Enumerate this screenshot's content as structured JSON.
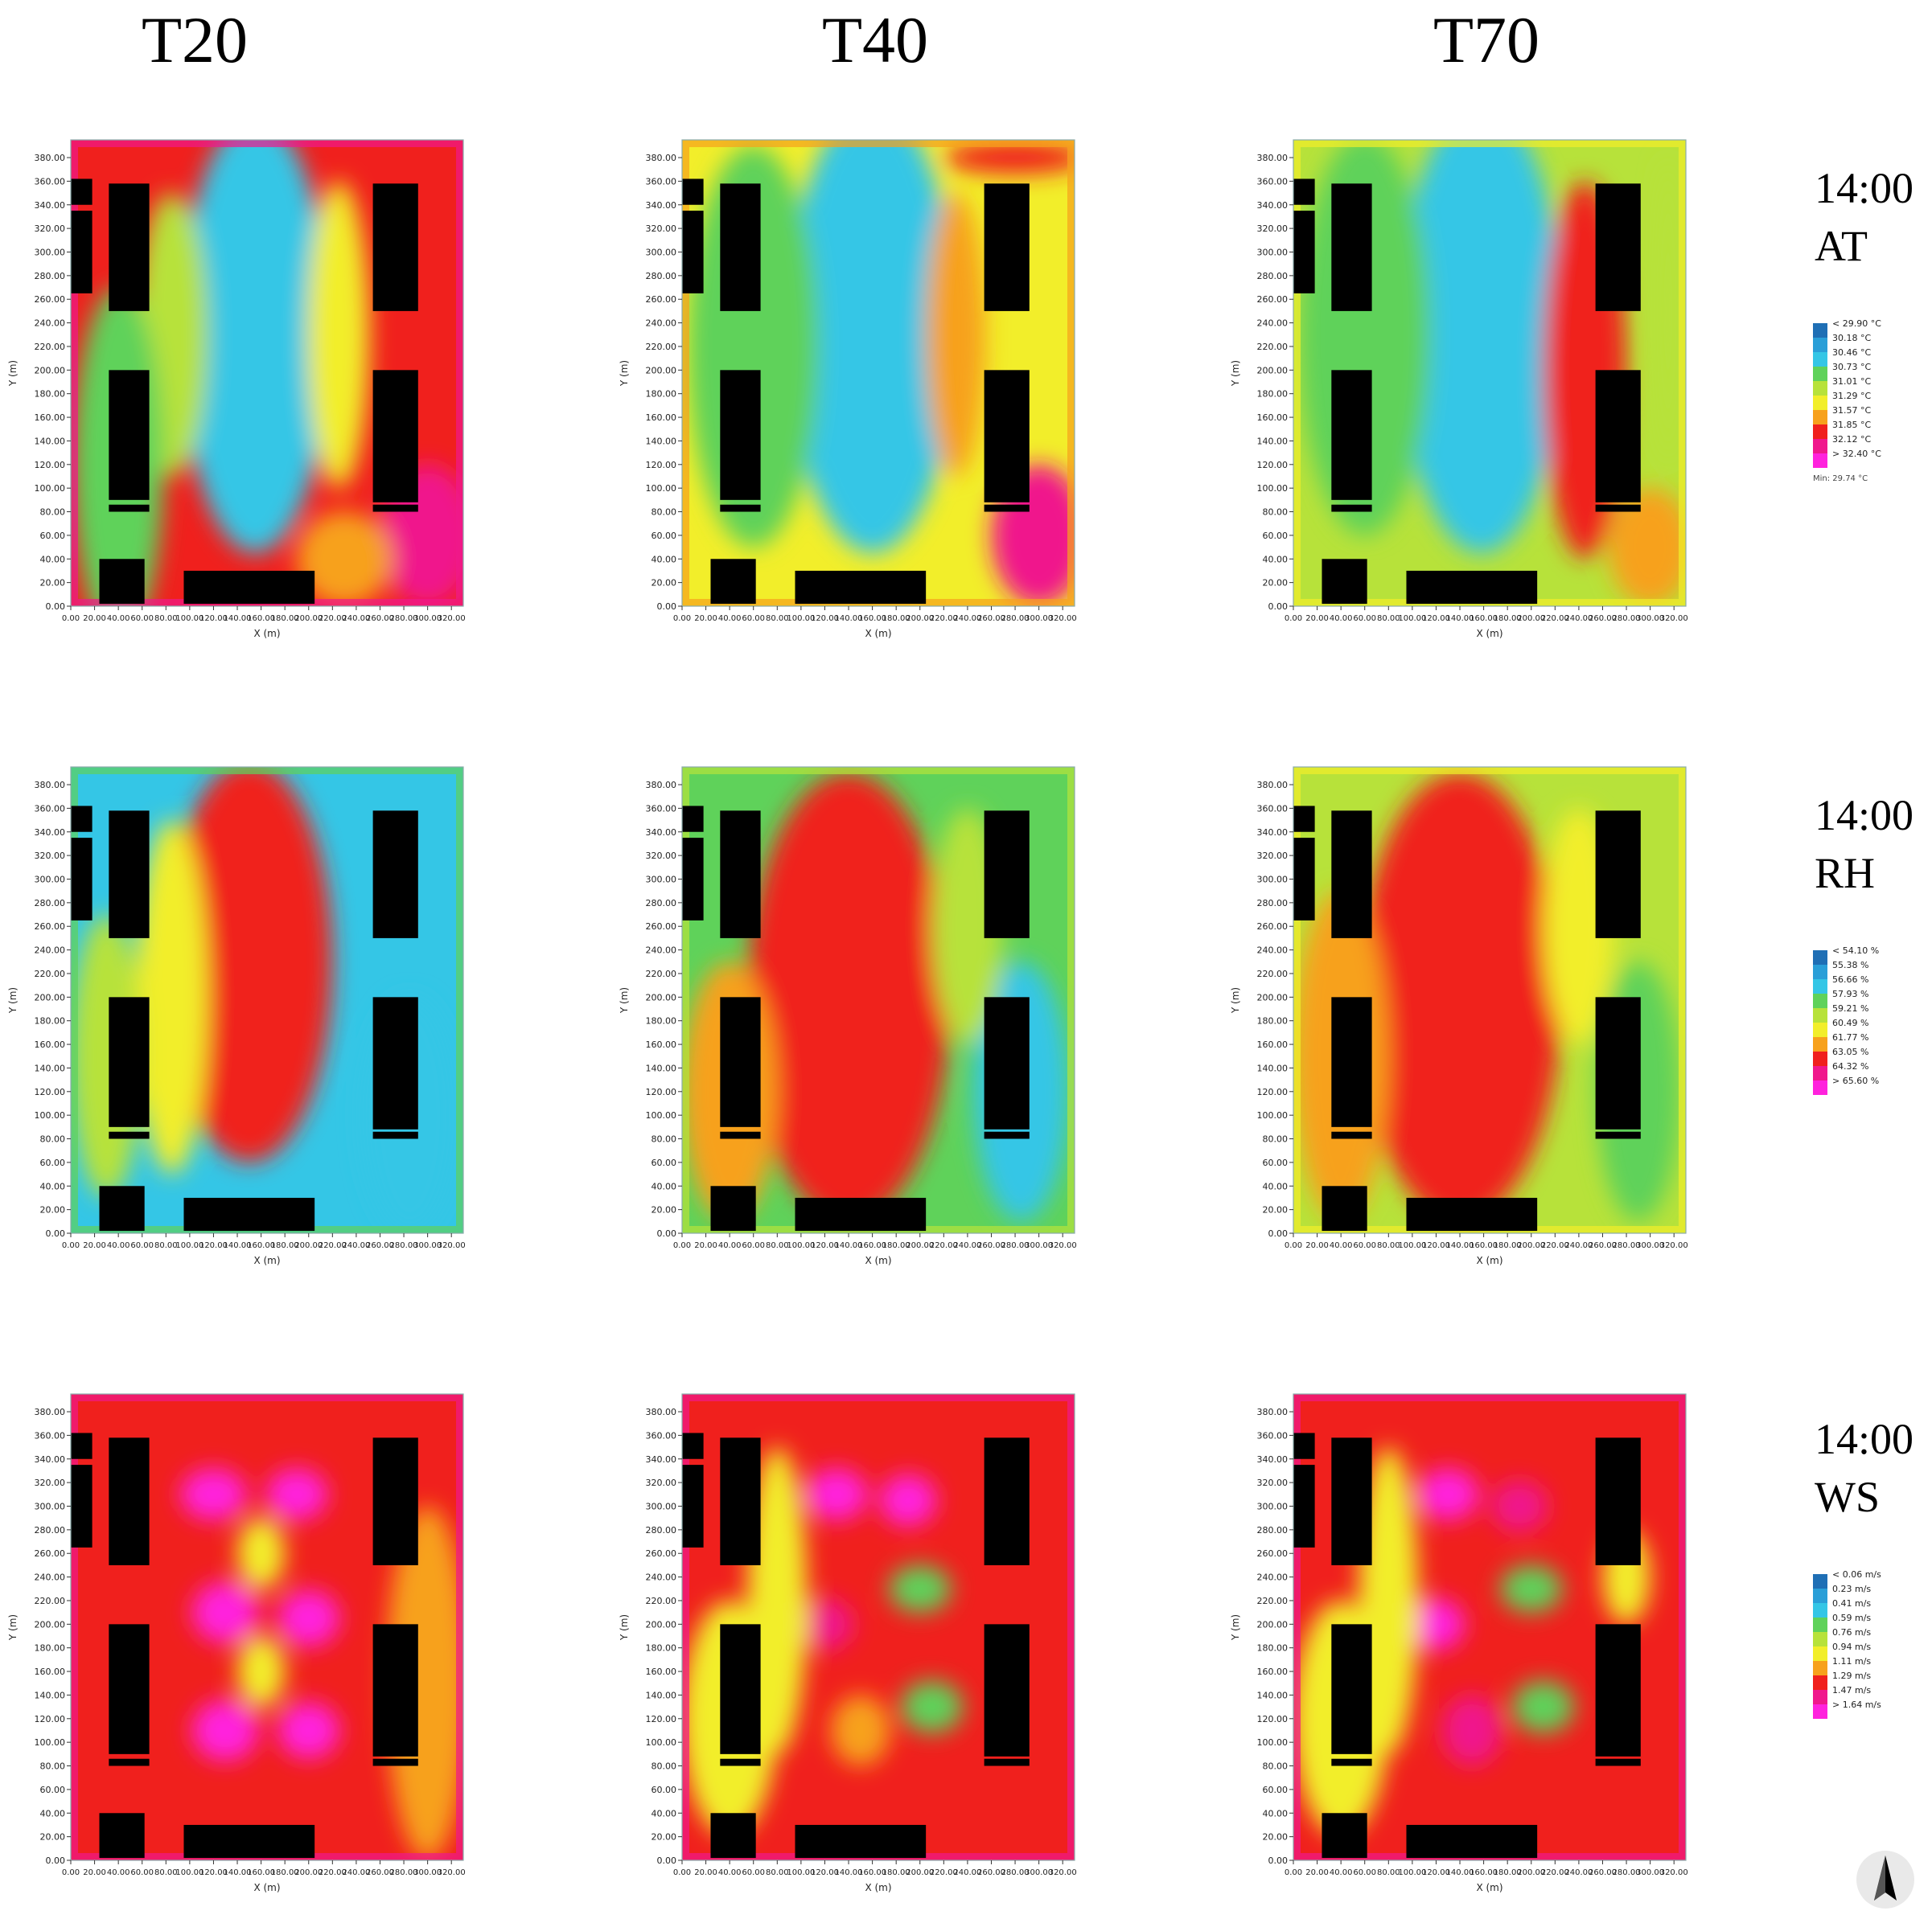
{
  "columns": [
    "T20",
    "T40",
    "T70"
  ],
  "rows": [
    {
      "time": "14:00",
      "variable": "AT",
      "legend": {
        "labels": [
          "< 29.90 °C",
          "30.18 °C",
          "30.46 °C",
          "30.73 °C",
          "31.01 °C",
          "31.29 °C",
          "31.57 °C",
          "31.85 °C",
          "32.12 °C",
          "> 32.40 °C"
        ],
        "footer": "Min: 29.74 °C"
      }
    },
    {
      "time": "14:00",
      "variable": "RH",
      "legend": {
        "labels": [
          "< 54.10 %",
          "55.38 %",
          "56.66 %",
          "57.93 %",
          "59.21 %",
          "60.49 %",
          "61.77 %",
          "63.05 %",
          "64.32 %",
          "> 65.60 %"
        ],
        "footer": ""
      }
    },
    {
      "time": "14:00",
      "variable": "WS",
      "legend": {
        "labels": [
          "< 0.06 m/s",
          "0.23 m/s",
          "0.41 m/s",
          "0.59 m/s",
          "0.76 m/s",
          "0.94 m/s",
          "1.11 m/s",
          "1.29 m/s",
          "1.47 m/s",
          "> 1.64 m/s"
        ],
        "footer": ""
      }
    }
  ],
  "colors": {
    "scale": [
      "#1f6fb5",
      "#2a9fd8",
      "#34c6e6",
      "#5fd25a",
      "#b7e23a",
      "#f2ee2a",
      "#f7a11c",
      "#f0201d",
      "#f0188c",
      "#ff22dd"
    ],
    "building": "#000000"
  },
  "chart_data": {
    "type": "heatmap",
    "panels": "3x3 grid (rows: AT, RH, WS; columns: T20, T40, T70)",
    "xlabel": "X (m)",
    "ylabel": "Y (m)",
    "x_ticks": [
      "0.00",
      "20.00",
      "40.00",
      "60.00",
      "80.00",
      "100.00",
      "120.00",
      "140.00",
      "160.00",
      "180.00",
      "200.00",
      "220.00",
      "240.00",
      "260.00",
      "280.00",
      "300.00",
      "320.00"
    ],
    "y_ticks": [
      "0.00",
      "20.00",
      "40.00",
      "60.00",
      "80.00",
      "100.00",
      "120.00",
      "140.00",
      "160.00",
      "180.00",
      "200.00",
      "220.00",
      "240.00",
      "260.00",
      "280.00",
      "300.00",
      "320.00",
      "340.00",
      "360.00",
      "380.00"
    ],
    "xlim": [
      0,
      330
    ],
    "ylim": [
      0,
      395
    ],
    "buildings": [
      {
        "x0": 0,
        "x1": 18,
        "y0": 340,
        "y1": 362
      },
      {
        "x0": 0,
        "x1": 18,
        "y0": 265,
        "y1": 335
      },
      {
        "x0": 32,
        "x1": 66,
        "y0": 250,
        "y1": 358
      },
      {
        "x0": 32,
        "x1": 66,
        "y0": 90,
        "y1": 200
      },
      {
        "x0": 32,
        "x1": 66,
        "y0": 80,
        "y1": 86
      },
      {
        "x0": 254,
        "x1": 292,
        "y0": 250,
        "y1": 358
      },
      {
        "x0": 254,
        "x1": 292,
        "y0": 88,
        "y1": 200
      },
      {
        "x0": 254,
        "x1": 292,
        "y0": 80,
        "y1": 86
      },
      {
        "x0": 24,
        "x1": 62,
        "y0": 2,
        "y1": 40
      },
      {
        "x0": 95,
        "x1": 205,
        "y0": 2,
        "y1": 30
      }
    ],
    "panel_values": [
      [
        {
          "background": 7,
          "zones": [
            {
              "cx": 155,
              "cy": 230,
              "rx": 42,
              "ry": 170,
              "v": 0
            },
            {
              "cx": 155,
              "cy": 230,
              "rx": 62,
              "ry": 185,
              "v": 2
            },
            {
              "cx": 85,
              "cy": 230,
              "rx": 30,
              "ry": 120,
              "v": 4
            },
            {
              "cx": 225,
              "cy": 230,
              "rx": 26,
              "ry": 130,
              "v": 5
            },
            {
              "cx": 40,
              "cy": 120,
              "rx": 38,
              "ry": 150,
              "v": 3
            },
            {
              "cx": 300,
              "cy": 60,
              "rx": 40,
              "ry": 60,
              "v": 8
            },
            {
              "cx": 230,
              "cy": 40,
              "rx": 40,
              "ry": 40,
              "v": 6
            }
          ]
        },
        {
          "background": 5,
          "zones": [
            {
              "cx": 160,
              "cy": 235,
              "rx": 45,
              "ry": 172,
              "v": 0
            },
            {
              "cx": 160,
              "cy": 235,
              "rx": 70,
              "ry": 190,
              "v": 2
            },
            {
              "cx": 60,
              "cy": 220,
              "rx": 55,
              "ry": 170,
              "v": 3
            },
            {
              "cx": 230,
              "cy": 230,
              "rx": 25,
              "ry": 120,
              "v": 6
            },
            {
              "cx": 300,
              "cy": 60,
              "rx": 40,
              "ry": 60,
              "v": 8
            },
            {
              "cx": 280,
              "cy": 380,
              "rx": 60,
              "ry": 14,
              "v": 7
            }
          ]
        },
        {
          "background": 4,
          "zones": [
            {
              "cx": 158,
              "cy": 235,
              "rx": 45,
              "ry": 172,
              "v": 0
            },
            {
              "cx": 158,
              "cy": 235,
              "rx": 68,
              "ry": 190,
              "v": 2
            },
            {
              "cx": 60,
              "cy": 230,
              "rx": 55,
              "ry": 170,
              "v": 3
            },
            {
              "cx": 245,
              "cy": 200,
              "rx": 35,
              "ry": 160,
              "v": 7
            },
            {
              "cx": 300,
              "cy": 50,
              "rx": 35,
              "ry": 50,
              "v": 6
            },
            {
              "cx": 315,
              "cy": 250,
              "rx": 10,
              "ry": 130,
              "v": 4
            }
          ]
        }
      ],
      [
        {
          "background": 2,
          "zones": [
            {
              "cx": 150,
              "cy": 230,
              "rx": 50,
              "ry": 150,
              "v": 9
            },
            {
              "cx": 150,
              "cy": 230,
              "rx": 70,
              "ry": 170,
              "v": 7
            },
            {
              "cx": 85,
              "cy": 200,
              "rx": 30,
              "ry": 150,
              "v": 5
            },
            {
              "cx": 30,
              "cy": 150,
              "rx": 30,
              "ry": 120,
              "v": 4
            },
            {
              "cx": 285,
              "cy": 100,
              "rx": 40,
              "ry": 100,
              "v": 2
            }
          ]
        },
        {
          "background": 3,
          "zones": [
            {
              "cx": 140,
              "cy": 200,
              "rx": 65,
              "ry": 170,
              "v": 9
            },
            {
              "cx": 140,
              "cy": 200,
              "rx": 85,
              "ry": 190,
              "v": 7
            },
            {
              "cx": 40,
              "cy": 120,
              "rx": 40,
              "ry": 110,
              "v": 6
            },
            {
              "cx": 285,
              "cy": 120,
              "rx": 40,
              "ry": 110,
              "v": 2
            },
            {
              "cx": 240,
              "cy": 260,
              "rx": 30,
              "ry": 100,
              "v": 4
            }
          ]
        },
        {
          "background": 4,
          "zones": [
            {
              "cx": 140,
              "cy": 200,
              "rx": 65,
              "ry": 170,
              "v": 9
            },
            {
              "cx": 140,
              "cy": 200,
              "rx": 85,
              "ry": 190,
              "v": 7
            },
            {
              "cx": 40,
              "cy": 150,
              "rx": 40,
              "ry": 140,
              "v": 6
            },
            {
              "cx": 290,
              "cy": 120,
              "rx": 35,
              "ry": 110,
              "v": 3
            },
            {
              "cx": 240,
              "cy": 260,
              "rx": 30,
              "ry": 100,
              "v": 5
            }
          ]
        }
      ],
      [
        {
          "background": 7,
          "zones": [
            {
              "cx": 120,
              "cy": 310,
              "rx": 28,
              "ry": 22,
              "v": 9
            },
            {
              "cx": 190,
              "cy": 310,
              "rx": 26,
              "ry": 22,
              "v": 9
            },
            {
              "cx": 130,
              "cy": 210,
              "rx": 28,
              "ry": 26,
              "v": 9
            },
            {
              "cx": 200,
              "cy": 205,
              "rx": 26,
              "ry": 24,
              "v": 9
            },
            {
              "cx": 130,
              "cy": 110,
              "rx": 28,
              "ry": 26,
              "v": 9
            },
            {
              "cx": 200,
              "cy": 110,
              "rx": 26,
              "ry": 24,
              "v": 9
            },
            {
              "cx": 160,
              "cy": 260,
              "rx": 20,
              "ry": 30,
              "v": 5
            },
            {
              "cx": 160,
              "cy": 160,
              "rx": 20,
              "ry": 30,
              "v": 5
            },
            {
              "cx": 300,
              "cy": 150,
              "rx": 35,
              "ry": 150,
              "v": 6
            }
          ]
        },
        {
          "background": 7,
          "zones": [
            {
              "cx": 130,
              "cy": 310,
              "rx": 26,
              "ry": 22,
              "v": 9
            },
            {
              "cx": 190,
              "cy": 305,
              "rx": 24,
              "ry": 22,
              "v": 9
            },
            {
              "cx": 120,
              "cy": 200,
              "rx": 24,
              "ry": 22,
              "v": 8
            },
            {
              "cx": 200,
              "cy": 230,
              "rx": 26,
              "ry": 20,
              "v": 3
            },
            {
              "cx": 210,
              "cy": 130,
              "rx": 26,
              "ry": 22,
              "v": 3
            },
            {
              "cx": 150,
              "cy": 110,
              "rx": 25,
              "ry": 30,
              "v": 6
            },
            {
              "cx": 80,
              "cy": 220,
              "rx": 25,
              "ry": 130,
              "v": 5
            },
            {
              "cx": 40,
              "cy": 120,
              "rx": 40,
              "ry": 100,
              "v": 5
            }
          ]
        },
        {
          "background": 7,
          "zones": [
            {
              "cx": 130,
              "cy": 310,
              "rx": 26,
              "ry": 22,
              "v": 9
            },
            {
              "cx": 190,
              "cy": 300,
              "rx": 24,
              "ry": 22,
              "v": 8
            },
            {
              "cx": 120,
              "cy": 200,
              "rx": 24,
              "ry": 22,
              "v": 9
            },
            {
              "cx": 200,
              "cy": 230,
              "rx": 26,
              "ry": 20,
              "v": 3
            },
            {
              "cx": 210,
              "cy": 130,
              "rx": 26,
              "ry": 22,
              "v": 3
            },
            {
              "cx": 150,
              "cy": 110,
              "rx": 25,
              "ry": 30,
              "v": 8
            },
            {
              "cx": 80,
              "cy": 220,
              "rx": 25,
              "ry": 130,
              "v": 5
            },
            {
              "cx": 40,
              "cy": 120,
              "rx": 40,
              "ry": 100,
              "v": 5
            },
            {
              "cx": 280,
              "cy": 240,
              "rx": 20,
              "ry": 40,
              "v": 5
            }
          ]
        }
      ]
    ]
  },
  "compass": {
    "icon": "north-arrow-icon"
  }
}
